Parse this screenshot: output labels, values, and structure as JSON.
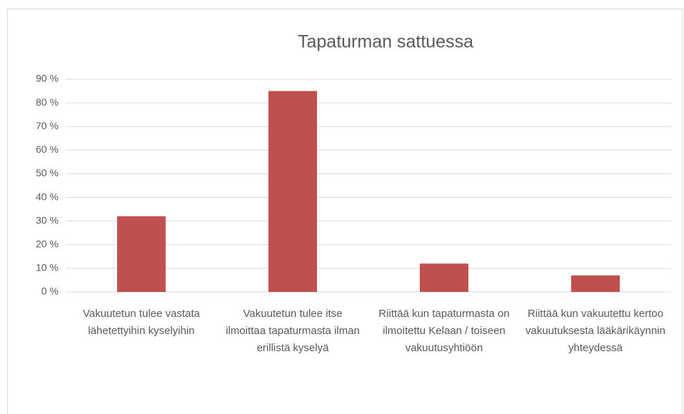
{
  "chart_data": {
    "type": "bar",
    "title": "Tapaturman sattuessa",
    "categories": [
      "Vakuutetun tulee vastata lähetettyihin kyselyihin",
      "Vakuutetun tulee itse ilmoittaa tapaturmasta ilman erillistä kyselyä",
      "Riittää kun tapaturmasta on ilmoitettu Kelaan / toiseen vakuutusyhtiöön",
      "Riittää kun vakuutettu kertoo vakuutuksesta lääkärikäynnin yhteydessä"
    ],
    "values": [
      32,
      85,
      12,
      7
    ],
    "color": "#c0504d",
    "ylim": [
      0,
      90
    ],
    "yticks": [
      {
        "value": 0,
        "label": "0 %"
      },
      {
        "value": 10,
        "label": "10 %"
      },
      {
        "value": 20,
        "label": "20 %"
      },
      {
        "value": 30,
        "label": "30 %"
      },
      {
        "value": 40,
        "label": "40 %"
      },
      {
        "value": 50,
        "label": "50 %"
      },
      {
        "value": 60,
        "label": "60 %"
      },
      {
        "value": 70,
        "label": "70 %"
      },
      {
        "value": 80,
        "label": "80 %"
      },
      {
        "value": 90,
        "label": "90 %"
      }
    ],
    "grid": true
  }
}
